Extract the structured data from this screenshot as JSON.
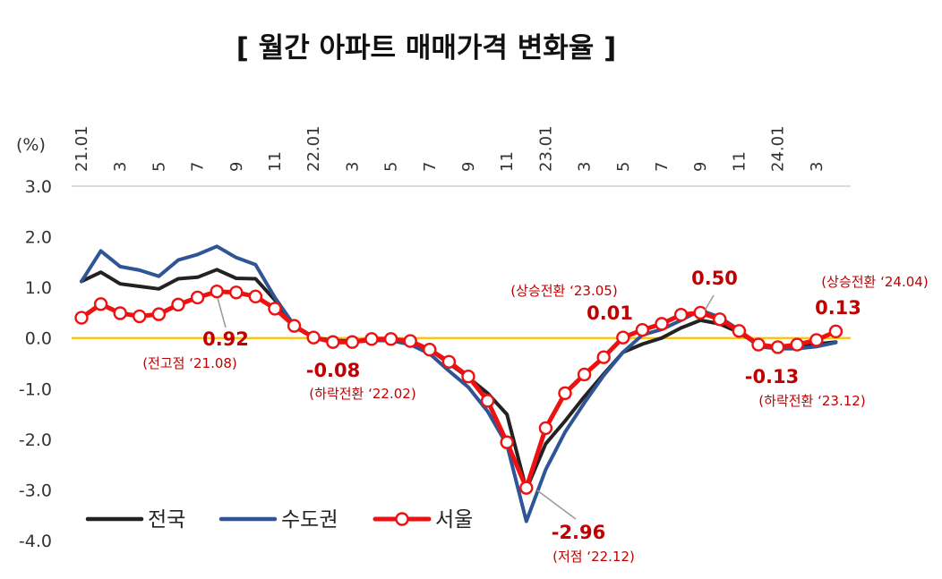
{
  "chart_data": {
    "type": "line",
    "title": "[ 월간 아파트 매매가격 변화율 ]",
    "ylabel": "(%)",
    "ylim": [
      -4.0,
      3.0
    ],
    "yticks": [
      "3.0",
      "2.0",
      "1.0",
      "0.0",
      "-1.0",
      "-2.0",
      "-3.0",
      "-4.0"
    ],
    "xtick_labels": [
      {
        "index": 0,
        "label": "21.01"
      },
      {
        "index": 2,
        "label": "3"
      },
      {
        "index": 4,
        "label": "5"
      },
      {
        "index": 6,
        "label": "7"
      },
      {
        "index": 8,
        "label": "9"
      },
      {
        "index": 10,
        "label": "11"
      },
      {
        "index": 12,
        "label": "22.01"
      },
      {
        "index": 14,
        "label": "3"
      },
      {
        "index": 16,
        "label": "5"
      },
      {
        "index": 18,
        "label": "7"
      },
      {
        "index": 20,
        "label": "9"
      },
      {
        "index": 22,
        "label": "11"
      },
      {
        "index": 24,
        "label": "23.01"
      },
      {
        "index": 26,
        "label": "3"
      },
      {
        "index": 28,
        "label": "5"
      },
      {
        "index": 30,
        "label": "7"
      },
      {
        "index": 32,
        "label": "9"
      },
      {
        "index": 34,
        "label": "11"
      },
      {
        "index": 36,
        "label": "24.01"
      },
      {
        "index": 38,
        "label": "3"
      }
    ],
    "x": [
      "21.01",
      "21.02",
      "21.03",
      "21.04",
      "21.05",
      "21.06",
      "21.07",
      "21.08",
      "21.09",
      "21.10",
      "21.11",
      "21.12",
      "22.01",
      "22.02",
      "22.03",
      "22.04",
      "22.05",
      "22.06",
      "22.07",
      "22.08",
      "22.09",
      "22.10",
      "22.11",
      "22.12",
      "23.01",
      "23.02",
      "23.03",
      "23.04",
      "23.05",
      "23.06",
      "23.07",
      "23.08",
      "23.09",
      "23.10",
      "23.11",
      "23.12",
      "24.01",
      "24.02",
      "24.03",
      "24.04"
    ],
    "series": [
      {
        "name": "전국",
        "color": "#222222",
        "values": [
          1.12,
          1.3,
          1.07,
          1.02,
          0.97,
          1.17,
          1.2,
          1.35,
          1.18,
          1.17,
          0.75,
          0.22,
          0.01,
          -0.05,
          -0.06,
          -0.03,
          -0.04,
          -0.1,
          -0.23,
          -0.5,
          -0.78,
          -1.09,
          -1.51,
          -2.99,
          -2.09,
          -1.64,
          -1.16,
          -0.71,
          -0.28,
          -0.12,
          0.0,
          0.2,
          0.35,
          0.28,
          0.11,
          -0.14,
          -0.18,
          -0.17,
          -0.12,
          -0.08
        ]
      },
      {
        "name": "수도권",
        "color": "#2f5597",
        "values": [
          1.12,
          1.72,
          1.41,
          1.34,
          1.22,
          1.54,
          1.65,
          1.81,
          1.59,
          1.45,
          0.8,
          0.25,
          0.0,
          -0.06,
          -0.08,
          -0.05,
          -0.05,
          -0.13,
          -0.31,
          -0.65,
          -0.97,
          -1.45,
          -2.11,
          -3.62,
          -2.6,
          -1.86,
          -1.28,
          -0.74,
          -0.28,
          0.06,
          0.17,
          0.35,
          0.55,
          0.41,
          0.16,
          -0.17,
          -0.21,
          -0.21,
          -0.17,
          -0.09
        ]
      },
      {
        "name": "서울",
        "color": "#ee1111",
        "values": [
          0.4,
          0.67,
          0.49,
          0.43,
          0.47,
          0.66,
          0.8,
          0.92,
          0.9,
          0.82,
          0.58,
          0.24,
          0.01,
          -0.08,
          -0.08,
          -0.02,
          -0.02,
          -0.06,
          -0.23,
          -0.47,
          -0.76,
          -1.24,
          -2.06,
          -2.96,
          -1.78,
          -1.09,
          -0.72,
          -0.38,
          0.01,
          0.16,
          0.28,
          0.46,
          0.5,
          0.37,
          0.14,
          -0.13,
          -0.18,
          -0.13,
          -0.04,
          0.13
        ]
      }
    ],
    "legend": {
      "placement": "bottom-left",
      "items": [
        "전국",
        "수도권",
        "서울"
      ]
    },
    "reference_line": {
      "y": 0.0,
      "color": "#ffc000"
    },
    "annotations": [
      {
        "value": "0.92",
        "note": "(전고점 ‘21.08)",
        "index": 7,
        "y": 0.92
      },
      {
        "value": "-0.08",
        "note": "(하락전환 ‘22.02)",
        "index": 13,
        "y": -0.08
      },
      {
        "value": "-2.96",
        "note": "(저점 ‘22.12)",
        "index": 23,
        "y": -2.96
      },
      {
        "value": "0.01",
        "note": "(상승전환 ‘23.05)",
        "index": 28,
        "y": 0.01
      },
      {
        "value": "0.50",
        "note": "",
        "index": 32,
        "y": 0.5
      },
      {
        "value": "-0.13",
        "note": "(하락전환 ‘23.12)",
        "index": 35,
        "y": -0.13
      },
      {
        "value": "0.13",
        "note": "(상승전환 ‘24.04)",
        "index": 39,
        "y": 0.13
      }
    ]
  }
}
